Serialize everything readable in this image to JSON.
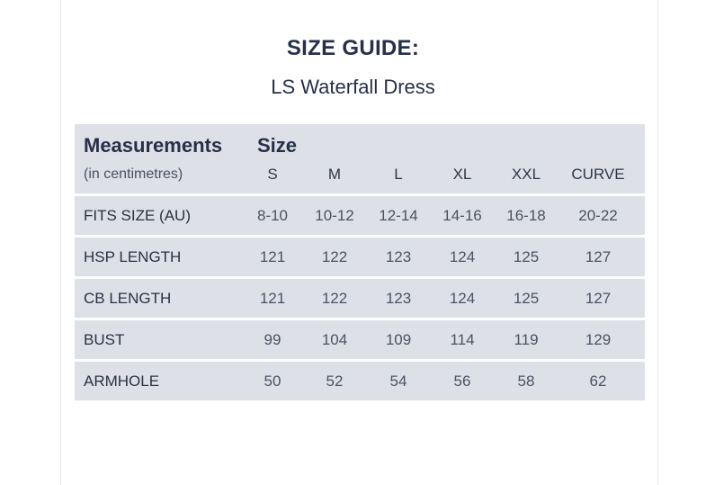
{
  "title": "SIZE GUIDE:",
  "subtitle": "LS Waterfall Dress",
  "table": {
    "measurements_label": "Measurements",
    "units_label": "(in centimetres)",
    "size_label": "Size",
    "sizes": [
      "S",
      "M",
      "L",
      "XL",
      "XXL",
      "CURVE"
    ],
    "rows": [
      {
        "label": "FITS SIZE (AU)",
        "values": [
          "8-10",
          "10-12",
          "12-14",
          "14-16",
          "16-18",
          "20-22"
        ]
      },
      {
        "label": "HSP LENGTH",
        "values": [
          "121",
          "122",
          "123",
          "124",
          "125",
          "127"
        ]
      },
      {
        "label": "CB LENGTH",
        "values": [
          "121",
          "122",
          "123",
          "124",
          "125",
          "127"
        ]
      },
      {
        "label": "BUST",
        "values": [
          "99",
          "104",
          "109",
          "114",
          "119",
          "129"
        ]
      },
      {
        "label": "ARMHOLE",
        "values": [
          "50",
          "52",
          "54",
          "56",
          "58",
          "62"
        ]
      }
    ]
  },
  "colors": {
    "row_background": "#dde0e6",
    "heading_text": "#273049"
  }
}
